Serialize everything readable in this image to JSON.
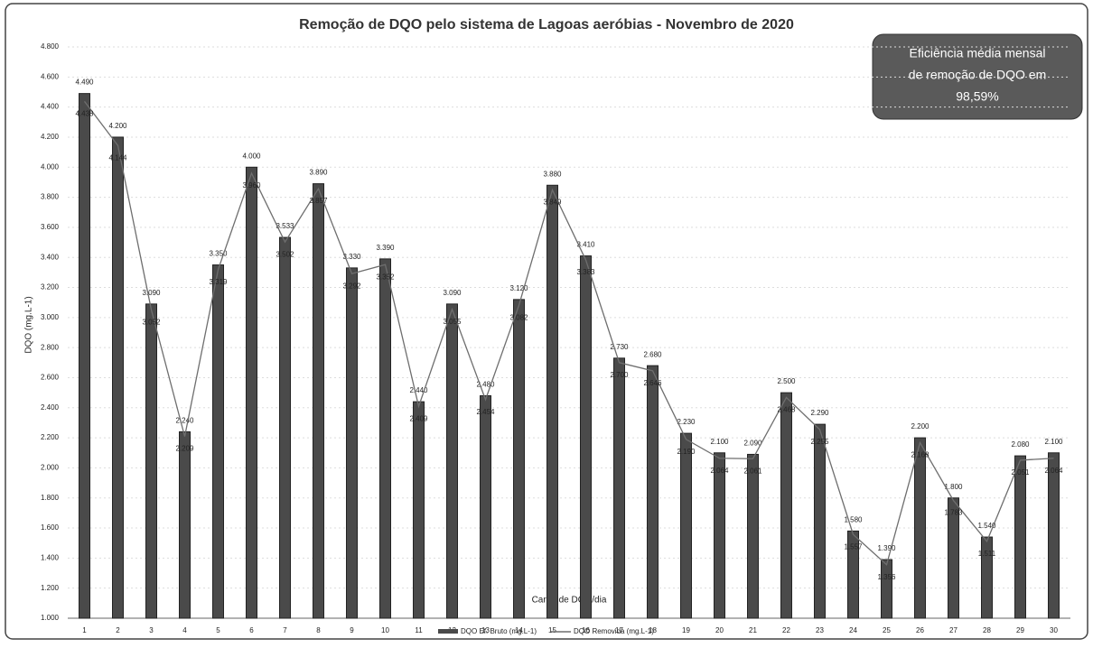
{
  "chart_data": {
    "type": "bar_line",
    "title": "Remoção de DQO pelo sistema de Lagoas aeróbias - Novembro de 2020",
    "xlabel": "Carga de DQO/dia",
    "ylabel": "DQO (mg.L-1)",
    "annotation": [
      "Eficiência média mensal",
      "de remoção de DQO em",
      "98,59%"
    ],
    "categories": [
      "1",
      "2",
      "3",
      "4",
      "5",
      "6",
      "7",
      "8",
      "9",
      "10",
      "11",
      "12",
      "13",
      "14",
      "15",
      "16",
      "17",
      "18",
      "19",
      "20",
      "21",
      "22",
      "23",
      "24",
      "25",
      "26",
      "27",
      "28",
      "29",
      "30"
    ],
    "series": [
      {
        "name": "DQO Ef. Bruto (mg.L-1)",
        "type": "bar",
        "color": "#4a4a4a",
        "values": [
          4490,
          4200,
          3090,
          2240,
          3350,
          4000,
          3533,
          3890,
          3330,
          3390,
          2440,
          3090,
          2480,
          3120,
          3880,
          3410,
          2730,
          2680,
          2230,
          2100,
          2090,
          2500,
          2290,
          1580,
          1390,
          2200,
          1800,
          1540,
          2080,
          2100
        ],
        "value_labels": [
          "4.490",
          "4.200",
          "3.090",
          "2.240",
          "3.350",
          "4.000",
          "3.533",
          "3.890",
          "3.330",
          "3.390",
          "2.440",
          "3.090",
          "2.480",
          "3.120",
          "3.880",
          "3.410",
          "2.730",
          "2.680",
          "2.230",
          "2.100",
          "2.090",
          "2.500",
          "2.290",
          "1.580",
          "1.390",
          "2.200",
          "1.800",
          "1.540",
          "2.080",
          "2.100"
        ]
      },
      {
        "name": "DQO Removida (mg.L-1)",
        "type": "line",
        "color": "#6e6e6e",
        "values": [
          4438,
          4144,
          3052,
          2209,
          3319,
          3960,
          3502,
          3857,
          3292,
          3352,
          2409,
          3055,
          2454,
          3082,
          3849,
          3383,
          2700,
          2646,
          2190,
          2064,
          2061,
          2468,
          2255,
          1557,
          1356,
          2168,
          1783,
          1511,
          2051,
          2064
        ],
        "value_labels": [
          "4.438",
          "4.144",
          "3.052",
          "2.209",
          "3.319",
          "3.960",
          "3.502",
          "3.857",
          "3.292",
          "3.352",
          "2.409",
          "3.055",
          "2.454",
          "3.082",
          "3.849",
          "3.383",
          "2.700",
          "2.646",
          "2.190",
          "2.064",
          "2.061",
          "2.468",
          "2.255",
          "1.557",
          "1.356",
          "2.168",
          "1.783",
          "1.511",
          "2.051",
          "2.064"
        ]
      }
    ],
    "ylim": [
      1000,
      4800
    ],
    "yticks": [
      {
        "value": 1000,
        "label": "1.000"
      },
      {
        "value": 1200,
        "label": "1.200"
      },
      {
        "value": 1400,
        "label": "1.400"
      },
      {
        "value": 1600,
        "label": "1.600"
      },
      {
        "value": 1800,
        "label": "1.800"
      },
      {
        "value": 2000,
        "label": "2.000"
      },
      {
        "value": 2200,
        "label": "2.200"
      },
      {
        "value": 2400,
        "label": "2.400"
      },
      {
        "value": 2600,
        "label": "2.600"
      },
      {
        "value": 2800,
        "label": "2.800"
      },
      {
        "value": 3000,
        "label": "3.000"
      },
      {
        "value": 3200,
        "label": "3.200"
      },
      {
        "value": 3400,
        "label": "3.400"
      },
      {
        "value": 3600,
        "label": "3.600"
      },
      {
        "value": 3800,
        "label": "3.800"
      },
      {
        "value": 4000,
        "label": "4.000"
      },
      {
        "value": 4200,
        "label": "4.200"
      },
      {
        "value": 4400,
        "label": "4.400"
      },
      {
        "value": 4600,
        "label": "4.600"
      },
      {
        "value": 4800,
        "label": "4.800"
      }
    ],
    "grid": true
  }
}
